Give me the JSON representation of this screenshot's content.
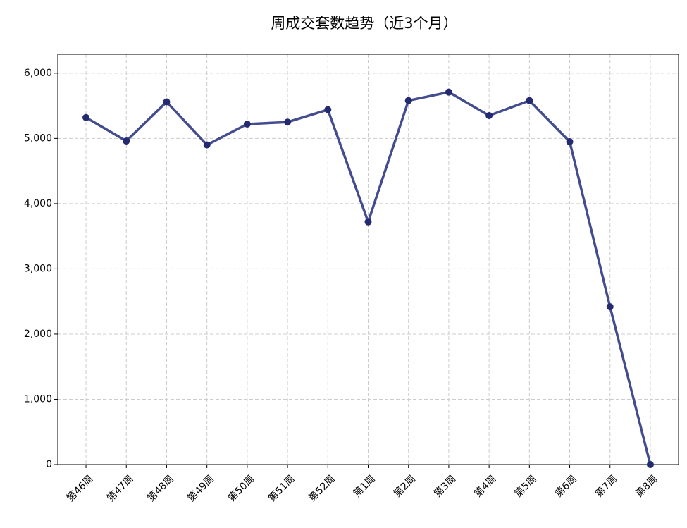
{
  "chart_data": {
    "type": "line",
    "title": "周成交套数趋势（近3个月）",
    "categories": [
      "第46周",
      "第47周",
      "第48周",
      "第49周",
      "第50周",
      "第51周",
      "第52周",
      "第1周",
      "第2周",
      "第3周",
      "第4周",
      "第5周",
      "第6周",
      "第7周",
      "第8周"
    ],
    "series": [
      {
        "name": "周成交套数",
        "color": "#434c8f",
        "marker_color": "#232a70",
        "values": [
          5320,
          4960,
          5560,
          4900,
          5220,
          5250,
          5440,
          3720,
          5580,
          5710,
          5350,
          5580,
          4950,
          2420,
          0
        ]
      }
    ],
    "ylim": [
      0,
      6290
    ],
    "yticks": [
      0,
      {
        "value": 1000,
        "label": "1,000"
      },
      {
        "value": 2000,
        "label": "2,000"
      },
      {
        "value": 3000,
        "label": "3,000"
      },
      {
        "value": 4000,
        "label": "4,000"
      },
      {
        "value": 5000,
        "label": "5,000"
      },
      {
        "value": 6000,
        "label": "6,000"
      }
    ],
    "grid": true,
    "legend": false
  }
}
